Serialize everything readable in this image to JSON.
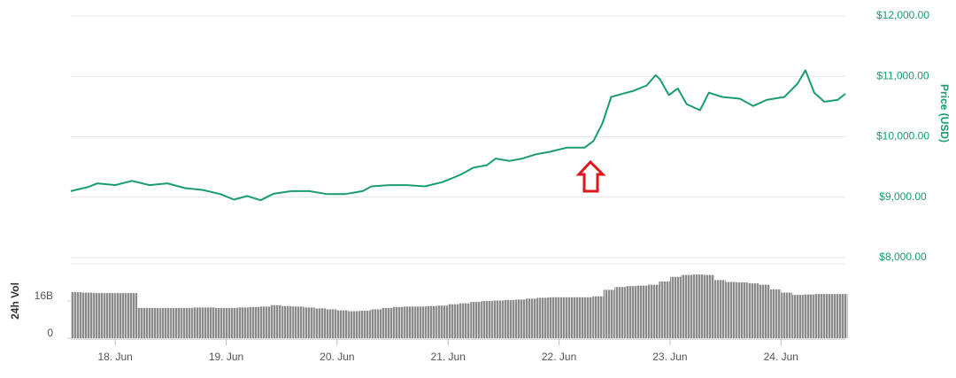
{
  "chart_data": [
    {
      "type": "line",
      "color": "#1a9c72",
      "y_label": "Price (USD)",
      "x": [
        17.6,
        17.76,
        17.84,
        18.0,
        18.15,
        18.31,
        18.47,
        18.63,
        18.79,
        18.95,
        19.07,
        19.19,
        19.31,
        19.43,
        19.59,
        19.75,
        19.91,
        20.07,
        20.23,
        20.31,
        20.47,
        20.63,
        20.79,
        20.95,
        21.11,
        21.23,
        21.35,
        21.43,
        21.55,
        21.67,
        21.79,
        21.91,
        22.07,
        22.23,
        22.31,
        22.39,
        22.47,
        22.55,
        22.67,
        22.79,
        22.87,
        22.91,
        22.99,
        23.07,
        23.15,
        23.27,
        23.35,
        23.47,
        23.63,
        23.75,
        23.87,
        24.03,
        24.15,
        24.22,
        24.3,
        24.39,
        24.51,
        24.58
      ],
      "values": [
        9100,
        9170,
        9230,
        9200,
        9270,
        9200,
        9230,
        9150,
        9120,
        9050,
        8960,
        9020,
        8950,
        9060,
        9100,
        9100,
        9050,
        9050,
        9100,
        9180,
        9200,
        9200,
        9180,
        9250,
        9370,
        9490,
        9530,
        9640,
        9600,
        9640,
        9710,
        9750,
        9820,
        9820,
        9930,
        10220,
        10660,
        10700,
        10760,
        10850,
        11020,
        10950,
        10690,
        10800,
        10540,
        10440,
        10730,
        10660,
        10630,
        10510,
        10610,
        10660,
        10880,
        11100,
        10730,
        10580,
        10610,
        10710
      ],
      "xlim": [
        17.6,
        24.58
      ],
      "ylim": [
        8000,
        12000
      ],
      "yticks": [
        {
          "value": 8000,
          "label": "$8,000.00"
        },
        {
          "value": 9000,
          "label": "$9,000.00"
        },
        {
          "value": 10000,
          "label": "$10,000.00"
        },
        {
          "value": 11000,
          "label": "$11,000.00"
        },
        {
          "value": 12000,
          "label": "$12,000.00"
        }
      ],
      "grid": true
    },
    {
      "type": "bar",
      "color": "#8a8a8a",
      "y_label": "24h Vol",
      "x": [
        17.6,
        17.7,
        17.8,
        17.9,
        18.0,
        18.1,
        18.2,
        18.3,
        18.4,
        18.5,
        18.6,
        18.7,
        18.8,
        18.9,
        19.0,
        19.1,
        19.2,
        19.3,
        19.4,
        19.5,
        19.6,
        19.7,
        19.8,
        19.9,
        20.0,
        20.1,
        20.2,
        20.3,
        20.4,
        20.5,
        20.6,
        20.7,
        20.8,
        20.9,
        21.0,
        21.1,
        21.2,
        21.3,
        21.4,
        21.5,
        21.6,
        21.7,
        21.8,
        21.9,
        22.0,
        22.1,
        22.2,
        22.3,
        22.4,
        22.5,
        22.6,
        22.7,
        22.8,
        22.9,
        23.0,
        23.1,
        23.2,
        23.3,
        23.4,
        23.5,
        23.6,
        23.7,
        23.8,
        23.9,
        24.0,
        24.1,
        24.2,
        24.3,
        24.4,
        24.5
      ],
      "values": [
        19.8,
        19.6,
        19.4,
        19.4,
        19.4,
        19.4,
        13.0,
        13.0,
        13.0,
        13.0,
        13.0,
        13.2,
        13.2,
        13.0,
        13.0,
        13.2,
        13.4,
        13.6,
        14.2,
        13.8,
        13.6,
        13.2,
        12.8,
        12.4,
        12.0,
        11.6,
        11.8,
        12.4,
        13.0,
        13.4,
        13.6,
        13.6,
        13.8,
        14.0,
        14.6,
        15.0,
        15.6,
        16.0,
        16.2,
        16.4,
        16.6,
        17.0,
        17.4,
        17.6,
        17.6,
        17.6,
        17.6,
        18.0,
        20.8,
        22.0,
        22.4,
        22.6,
        23.0,
        24.4,
        26.4,
        27.2,
        27.4,
        27.2,
        25.0,
        24.2,
        24.0,
        23.6,
        23.0,
        21.0,
        19.6,
        18.6,
        18.8,
        19.0,
        19.0,
        19.0
      ],
      "xlim": [
        17.6,
        24.58
      ],
      "xticks": [
        {
          "value": 18,
          "label": "18. Jun"
        },
        {
          "value": 19,
          "label": "19. Jun"
        },
        {
          "value": 20,
          "label": "20. Jun"
        },
        {
          "value": 21,
          "label": "21. Jun"
        },
        {
          "value": 22,
          "label": "22. Jun"
        },
        {
          "value": 23,
          "label": "23. Jun"
        },
        {
          "value": 24,
          "label": "24. Jun"
        }
      ],
      "ylim": [
        0,
        32
      ],
      "yticks": [
        0,
        {
          "value": 16,
          "label": "16B"
        }
      ]
    }
  ]
}
